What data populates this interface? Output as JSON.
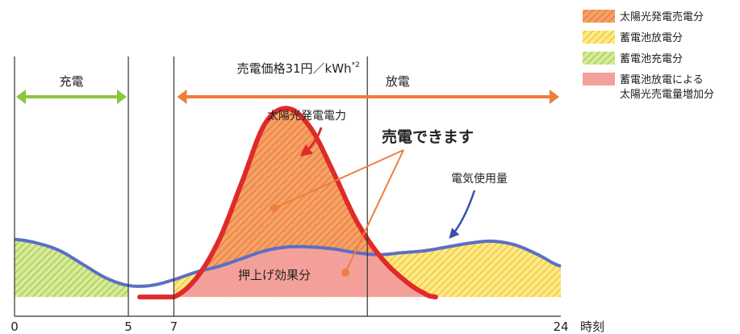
{
  "chart_data": {
    "type": "area",
    "x_unit_label": "時刻",
    "x_range": [
      0,
      24
    ],
    "x_ticks": [
      {
        "value": 0,
        "label": "0"
      },
      {
        "value": 5,
        "label": "5"
      },
      {
        "value": 7,
        "label": "7"
      },
      {
        "value": 24,
        "label": "24"
      }
    ],
    "grid": false,
    "legend_position": "top-right",
    "legend": [
      {
        "label": "太陽光発電売電分",
        "pattern": "hatch-orange"
      },
      {
        "label": "蓄電池放電分",
        "pattern": "hatch-yellow"
      },
      {
        "label": "蓄電池充電分",
        "pattern": "hatch-green"
      },
      {
        "label": "蓄電池放電による\n太陽光売電量増加分",
        "pattern": "solid-pink"
      }
    ],
    "periods": [
      {
        "label": "充電",
        "start": 0,
        "end": 5,
        "color": "#8cc63f"
      },
      {
        "label": "放電",
        "start": 7,
        "end": 24,
        "color": "#ef7d3c"
      }
    ],
    "price_note": "売電価格31円／kWh",
    "price_note_sup": "*2",
    "divider_x": [
      0,
      5,
      7,
      15.5
    ],
    "series": [
      {
        "name": "電気使用量",
        "color": "#5b6fc4",
        "x": [
          0,
          1,
          2,
          3,
          4,
          5,
          6,
          7,
          8,
          9,
          10,
          11,
          12,
          13,
          14,
          15,
          16,
          17,
          18,
          19,
          20,
          21,
          22,
          23,
          24
        ],
        "values": [
          0.3,
          0.28,
          0.24,
          0.17,
          0.1,
          0.06,
          0.06,
          0.09,
          0.13,
          0.16,
          0.2,
          0.24,
          0.26,
          0.26,
          0.25,
          0.23,
          0.22,
          0.23,
          0.24,
          0.26,
          0.28,
          0.29,
          0.27,
          0.22,
          0.16
        ]
      },
      {
        "name": "太陽光発電電力",
        "color": "#e02a2a",
        "x": [
          5.5,
          6,
          7,
          8,
          9,
          10,
          11,
          12,
          13,
          14,
          15,
          16,
          17,
          18,
          18.5
        ],
        "values": [
          0,
          0,
          0,
          0.1,
          0.3,
          0.6,
          0.9,
          0.98,
          0.88,
          0.65,
          0.4,
          0.22,
          0.1,
          0.02,
          0
        ]
      }
    ],
    "annotations": [
      {
        "text": "太陽光発電電力",
        "x": 13.2,
        "y": 1.12
      },
      {
        "text": "電気使用量",
        "x": 20.8,
        "y": 0.72
      },
      {
        "text": "売電できます",
        "x": 18.0,
        "y": 1.02
      },
      {
        "text": "押上げ効果分",
        "x": 11.5,
        "y": 0.02
      }
    ],
    "y_range": [
      -0.1,
      1.25
    ]
  }
}
